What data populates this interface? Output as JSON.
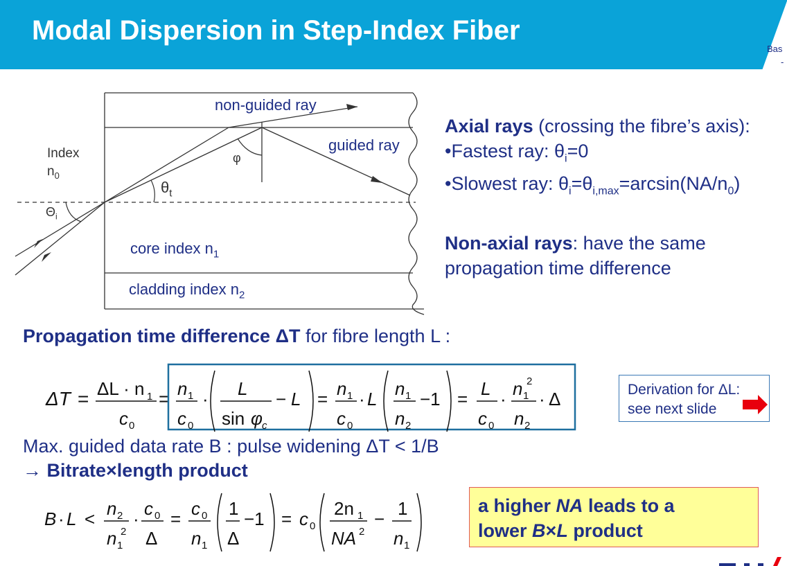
{
  "header": {
    "title": "Modal Dispersion in Step-Index Fiber",
    "corner_text": "Bas",
    "corner_dash": "-",
    "banner_color": "#0aa3d8"
  },
  "diagram": {
    "non_guided": "non-guided ray",
    "guided": "guided ray",
    "index_label": "Index",
    "n0": "n",
    "n0_sub": "0",
    "phi": "φ",
    "theta_t": "θ",
    "theta_t_sub": "t",
    "theta_i": "Θ",
    "theta_i_sub": "i",
    "core": "core index n",
    "core_sub": "1",
    "cladding": "cladding index n",
    "cladding_sub": "2"
  },
  "axial": {
    "heading": "Axial rays",
    "heading_rest": " (crossing the fibre’s axis):",
    "fast_pre": "•Fastest ray: θ",
    "fast_sub": "i",
    "fast_post": "=0",
    "slow_pre": "•Slowest ray: θ",
    "slow_sub1": "i",
    "slow_mid": "=θ",
    "slow_sub2": "i,max",
    "slow_post": "=arcsin(NA/n",
    "slow_sub3": "0",
    "slow_end": ")"
  },
  "nonaxial": {
    "heading": "Non-axial rays",
    "rest1": ": have the same",
    "rest2": "propagation time difference"
  },
  "ptd": {
    "bold": "Propagation time difference ΔT",
    "rest": "  for fibre length L :"
  },
  "deriv": {
    "line1": "Derivation for ΔL:",
    "line2": "see next slide",
    "arrow_color": "#e8000d"
  },
  "max_rate": "Max. guided data rate B : pulse widening ΔT < 1/B",
  "bitrate": {
    "arrow": "→ ",
    "text": "Bitrate×length product"
  },
  "highlight": {
    "l1_pre": "a higher ",
    "l1_em": "NA",
    "l1_post": " leads to a",
    "l2_pre": "lower ",
    "l2_em": "B",
    "l2_x": "×",
    "l2_em2": "L",
    "l2_post": " product"
  },
  "eq1": {
    "lhs": "ΔT",
    "eq": "=",
    "dl": "ΔL · n",
    "one": "1",
    "c": "c",
    "zero": "0",
    "n": "n",
    "L": "L",
    "sin": "sin",
    "phi": "φ",
    "csub": "c",
    "minus": "−",
    "minusone": "−1",
    "cdot": "·",
    "Delta": "Δ",
    "two": "2"
  },
  "eq2": {
    "B": "B",
    "dot": "·",
    "L": "L",
    "lt": "<",
    "n": "n",
    "two": "2",
    "one": "1",
    "c": "c",
    "zero": "0",
    "Delta": "Δ",
    "eq": "=",
    "minusone": "−1",
    "NA": "NA",
    "twon": "2n",
    "minus": "−"
  }
}
